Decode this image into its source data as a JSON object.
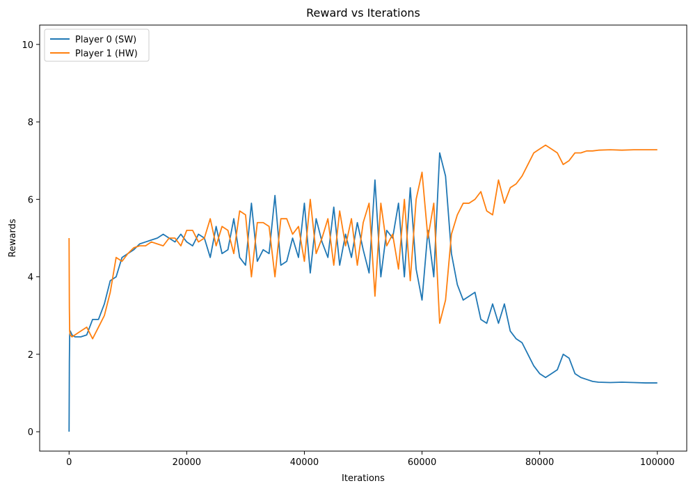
{
  "chart_data": {
    "type": "line",
    "title": "Reward vs Iterations",
    "xlabel": "Iterations",
    "ylabel": "Rewards",
    "xlim": [
      -5000,
      105000
    ],
    "ylim": [
      -0.5,
      10.5
    ],
    "xticks": [
      0,
      20000,
      40000,
      60000,
      80000,
      100000
    ],
    "xtick_labels": [
      "0",
      "20000",
      "40000",
      "60000",
      "80000",
      "100000"
    ],
    "yticks": [
      0,
      2,
      4,
      6,
      8,
      10
    ],
    "ytick_labels": [
      "0",
      "2",
      "4",
      "6",
      "8",
      "10"
    ],
    "grid": false,
    "legend_position": "top-left",
    "series": [
      {
        "name": "Player 0 (SW)",
        "color": "#1f77b4",
        "x": [
          0,
          50,
          100,
          200,
          500,
          1000,
          2000,
          3000,
          4000,
          5000,
          6000,
          7000,
          8000,
          9000,
          10000,
          11000,
          12000,
          13000,
          14000,
          15000,
          16000,
          17000,
          18000,
          19000,
          20000,
          21000,
          22000,
          23000,
          24000,
          25000,
          26000,
          27000,
          28000,
          29000,
          30000,
          31000,
          32000,
          33000,
          34000,
          35000,
          36000,
          37000,
          38000,
          39000,
          40000,
          41000,
          42000,
          43000,
          44000,
          45000,
          46000,
          47000,
          48000,
          49000,
          50000,
          51000,
          52000,
          53000,
          54000,
          55000,
          56000,
          57000,
          58000,
          59000,
          60000,
          61000,
          62000,
          63000,
          64000,
          65000,
          66000,
          67000,
          68000,
          69000,
          70000,
          71000,
          72000,
          73000,
          74000,
          75000,
          76000,
          77000,
          78000,
          79000,
          80000,
          81000,
          82000,
          83000,
          84000,
          85000,
          86000,
          87000,
          88000,
          89000,
          90000,
          92000,
          94000,
          96000,
          98000,
          100000
        ],
        "y": [
          0.0,
          1.8,
          2.5,
          2.6,
          2.5,
          2.45,
          2.45,
          2.5,
          2.9,
          2.9,
          3.3,
          3.9,
          4.0,
          4.5,
          4.6,
          4.7,
          4.85,
          4.9,
          4.95,
          5.0,
          5.1,
          5.0,
          4.9,
          5.1,
          4.9,
          4.8,
          5.1,
          5.0,
          4.5,
          5.3,
          4.6,
          4.7,
          5.5,
          4.5,
          4.3,
          5.9,
          4.4,
          4.7,
          4.6,
          6.1,
          4.3,
          4.4,
          5.0,
          4.5,
          5.9,
          4.1,
          5.5,
          4.9,
          4.5,
          5.8,
          4.3,
          5.1,
          4.5,
          5.4,
          4.7,
          4.1,
          6.5,
          4.0,
          5.2,
          5.0,
          5.9,
          4.0,
          6.3,
          4.2,
          3.4,
          5.2,
          4.0,
          7.2,
          6.6,
          4.6,
          3.8,
          3.4,
          3.5,
          3.6,
          2.9,
          2.8,
          3.3,
          2.8,
          3.3,
          2.6,
          2.4,
          2.3,
          2.0,
          1.7,
          1.5,
          1.4,
          1.5,
          1.6,
          2.0,
          1.9,
          1.5,
          1.4,
          1.35,
          1.3,
          1.28,
          1.27,
          1.28,
          1.27,
          1.26,
          1.26
        ]
      },
      {
        "name": "Player 1 (HW)",
        "color": "#ff7f0e",
        "x": [
          0,
          50,
          100,
          200,
          500,
          1000,
          2000,
          3000,
          4000,
          5000,
          6000,
          7000,
          8000,
          9000,
          10000,
          11000,
          12000,
          13000,
          14000,
          15000,
          16000,
          17000,
          18000,
          19000,
          20000,
          21000,
          22000,
          23000,
          24000,
          25000,
          26000,
          27000,
          28000,
          29000,
          30000,
          31000,
          32000,
          33000,
          34000,
          35000,
          36000,
          37000,
          38000,
          39000,
          40000,
          41000,
          42000,
          43000,
          44000,
          45000,
          46000,
          47000,
          48000,
          49000,
          50000,
          51000,
          52000,
          53000,
          54000,
          55000,
          56000,
          57000,
          58000,
          59000,
          60000,
          61000,
          62000,
          63000,
          64000,
          65000,
          66000,
          67000,
          68000,
          69000,
          70000,
          71000,
          72000,
          73000,
          74000,
          75000,
          76000,
          77000,
          78000,
          79000,
          80000,
          81000,
          82000,
          83000,
          84000,
          85000,
          86000,
          87000,
          88000,
          89000,
          90000,
          92000,
          94000,
          96000,
          98000,
          100000
        ],
        "y": [
          5.0,
          3.2,
          2.6,
          2.5,
          2.45,
          2.5,
          2.6,
          2.7,
          2.4,
          2.7,
          3.0,
          3.6,
          4.5,
          4.4,
          4.6,
          4.75,
          4.8,
          4.8,
          4.9,
          4.85,
          4.8,
          5.0,
          5.0,
          4.8,
          5.2,
          5.2,
          4.9,
          5.0,
          5.5,
          4.8,
          5.3,
          5.2,
          4.6,
          5.7,
          5.6,
          4.0,
          5.4,
          5.4,
          5.3,
          4.0,
          5.5,
          5.5,
          5.1,
          5.3,
          4.4,
          6.0,
          4.6,
          5.0,
          5.5,
          4.3,
          5.7,
          4.8,
          5.5,
          4.3,
          5.4,
          5.9,
          3.5,
          5.9,
          4.8,
          5.1,
          4.2,
          6.0,
          3.9,
          6.0,
          6.7,
          5.0,
          5.9,
          2.8,
          3.4,
          5.1,
          5.6,
          5.9,
          5.9,
          6.0,
          6.2,
          5.7,
          5.6,
          6.5,
          5.9,
          6.3,
          6.4,
          6.6,
          6.9,
          7.2,
          7.3,
          7.4,
          7.3,
          7.2,
          6.9,
          7.0,
          7.2,
          7.2,
          7.25,
          7.25,
          7.27,
          7.28,
          7.27,
          7.28,
          7.28,
          7.28
        ]
      }
    ]
  }
}
